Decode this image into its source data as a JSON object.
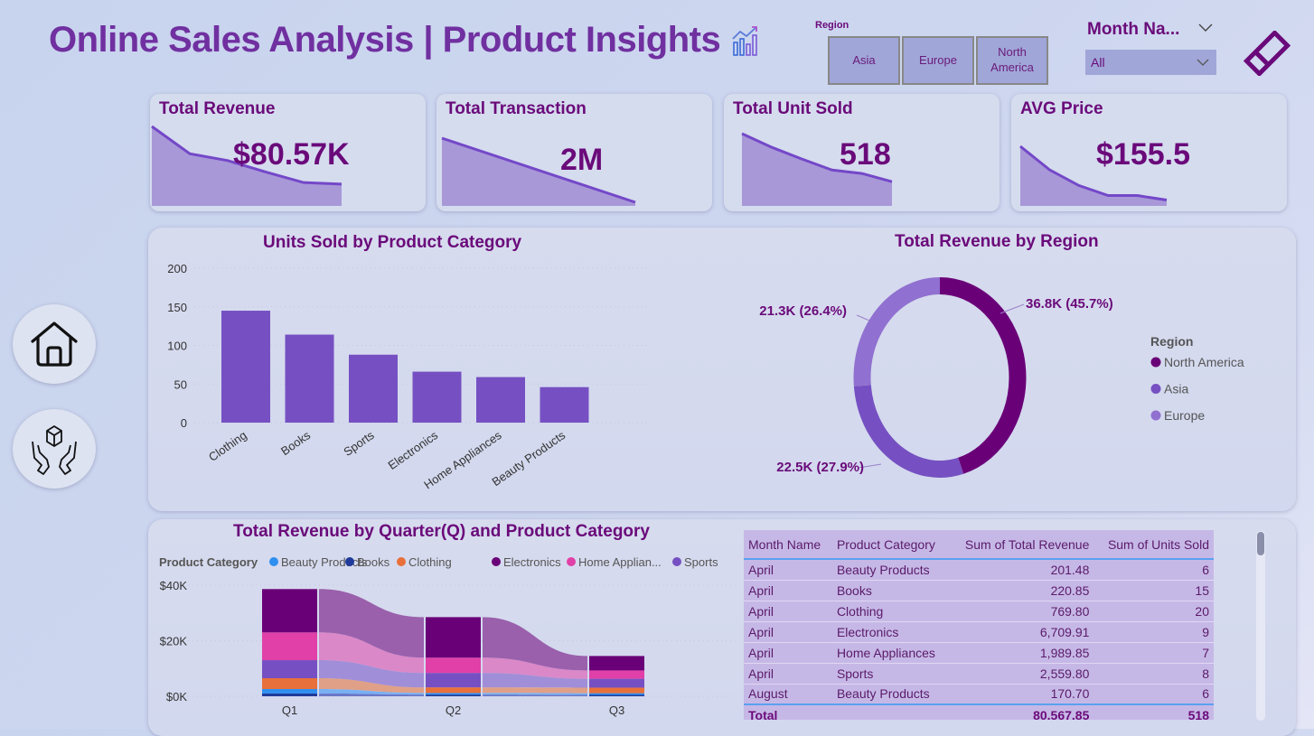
{
  "header": {
    "title": "Online Sales Analysis | Product Insights",
    "title_icon": "chart-growth-icon"
  },
  "filters": {
    "region_label": "Region",
    "region_options": [
      "Asia",
      "Europe",
      "North\nAmerica"
    ],
    "month_label": "Month Na...",
    "month_value": "All"
  },
  "nav": {
    "home_icon": "home-icon",
    "product_icon": "hands-box-icon",
    "clear_icon": "eraser-icon"
  },
  "kpis": [
    {
      "title": "Total Revenue",
      "value": "$80.57K",
      "trend": [
        100,
        64,
        55,
        40,
        26,
        24
      ]
    },
    {
      "title": "Total Transaction",
      "value": "2M",
      "trend": [
        100,
        0
      ]
    },
    {
      "title": "Total Unit Sold",
      "value": "518",
      "trend": [
        100,
        80,
        63,
        47,
        42,
        30
      ]
    },
    {
      "title": "AVG Price",
      "value": "$155.5",
      "trend": [
        100,
        58,
        30,
        12,
        12,
        4
      ]
    }
  ],
  "charts": {
    "units": {
      "title": "Units Sold by Product Category"
    },
    "region": {
      "title": "Total Revenue by Region",
      "legend_title": "Region"
    },
    "quarter": {
      "title": "Total Revenue by Quarter(Q) and Product Category",
      "legend_title": "Product Category"
    }
  },
  "chart_data": [
    {
      "type": "bar",
      "title": "Units Sold by Product Category",
      "categories": [
        "Clothing",
        "Books",
        "Sports",
        "Electronics",
        "Home Appliances",
        "Beauty Products"
      ],
      "values": [
        145,
        114,
        88,
        66,
        59,
        46
      ],
      "ylim": [
        0,
        200
      ],
      "yticks": [
        0,
        50,
        100,
        150,
        200
      ],
      "color": "#7650c2",
      "grid": true
    },
    {
      "type": "pie",
      "subtype": "donut",
      "title": "Total Revenue by Region",
      "categories": [
        "North America",
        "Asia",
        "Europe"
      ],
      "values": [
        36.8,
        22.5,
        21.3
      ],
      "labels": [
        "36.8K (45.7%)",
        "22.5K (27.9%)",
        "21.3K (26.4%)"
      ],
      "colors": [
        "#6a0078",
        "#7650c2",
        "#9070d0"
      ],
      "legend": "right"
    },
    {
      "type": "bar",
      "subtype": "stacked-ribbon",
      "title": "Total Revenue by Quarter(Q) and Product Category",
      "categories": [
        "Q1",
        "Q2",
        "Q3"
      ],
      "series": [
        {
          "name": "Books",
          "color": "#1f3a9a",
          "values": [
            1.0,
            0.6,
            0.5
          ]
        },
        {
          "name": "Beauty Products",
          "color": "#2f8ff0",
          "values": [
            1.6,
            0.6,
            0.6
          ]
        },
        {
          "name": "Clothing",
          "color": "#e8703a",
          "values": [
            3.9,
            2.0,
            2.0
          ]
        },
        {
          "name": "Sports",
          "color": "#7650c2",
          "values": [
            6.5,
            5.2,
            3.2
          ]
        },
        {
          "name": "Home Applian...",
          "color": "#e040a8",
          "values": [
            10.0,
            5.5,
            3.0
          ]
        },
        {
          "name": "Electronics",
          "color": "#6a0078",
          "values": [
            15.6,
            14.6,
            5.2
          ]
        }
      ],
      "legend_order": [
        "Beauty Products",
        "Books",
        "Clothing",
        "Electronics",
        "Home Applian...",
        "Sports"
      ],
      "ylim": [
        0,
        40
      ],
      "yticks": [
        "$0K",
        "$20K",
        "$40K"
      ],
      "ytick_values": [
        0,
        20,
        40
      ],
      "legend": "top"
    }
  ],
  "table": {
    "columns": [
      "Month Name",
      "Product Category",
      "Sum of Total Revenue",
      "Sum of Units Sold"
    ],
    "rows": [
      [
        "April",
        "Beauty Products",
        "201.48",
        "6"
      ],
      [
        "April",
        "Books",
        "220.85",
        "15"
      ],
      [
        "April",
        "Clothing",
        "769.80",
        "20"
      ],
      [
        "April",
        "Electronics",
        "6,709.91",
        "9"
      ],
      [
        "April",
        "Home Appliances",
        "1,989.85",
        "7"
      ],
      [
        "April",
        "Sports",
        "2,559.80",
        "8"
      ],
      [
        "August",
        "Beauty Products",
        "170.70",
        "6"
      ]
    ],
    "total": [
      "Total",
      "",
      "80,567.85",
      "518"
    ]
  }
}
